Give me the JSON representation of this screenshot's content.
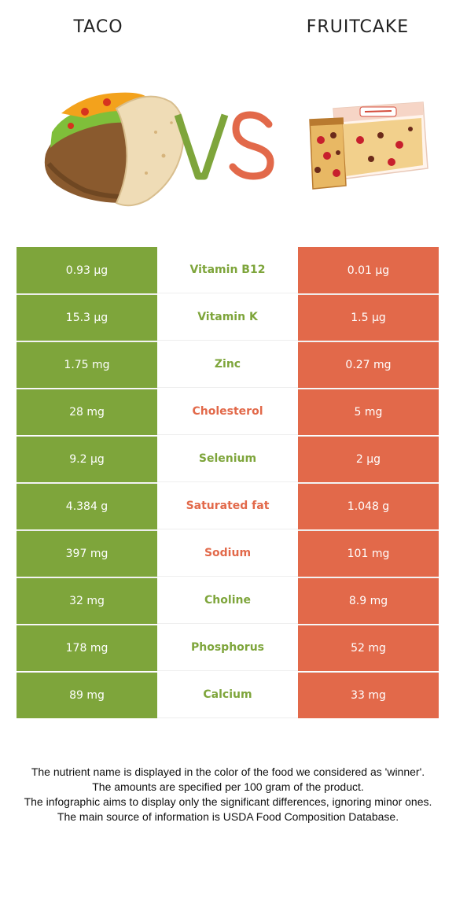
{
  "header": {
    "left_food": "TACO",
    "right_food": "FRUITCAKE"
  },
  "colors": {
    "winner_left": "#7ea53b",
    "winner_right": "#e2694a"
  },
  "icons": {
    "left_food_image": "taco-icon",
    "right_food_image": "fruitcake-icon",
    "vs": "vs-icon"
  },
  "rows": [
    {
      "left": "0.93 µg",
      "nutrient": "Vitamin B12",
      "right": "0.01 µg",
      "winner": "left"
    },
    {
      "left": "15.3 µg",
      "nutrient": "Vitamin K",
      "right": "1.5 µg",
      "winner": "left"
    },
    {
      "left": "1.75 mg",
      "nutrient": "Zinc",
      "right": "0.27 mg",
      "winner": "left"
    },
    {
      "left": "28 mg",
      "nutrient": "Cholesterol",
      "right": "5 mg",
      "winner": "right"
    },
    {
      "left": "9.2 µg",
      "nutrient": "Selenium",
      "right": "2 µg",
      "winner": "left"
    },
    {
      "left": "4.384 g",
      "nutrient": "Saturated fat",
      "right": "1.048 g",
      "winner": "right"
    },
    {
      "left": "397 mg",
      "nutrient": "Sodium",
      "right": "101 mg",
      "winner": "right"
    },
    {
      "left": "32 mg",
      "nutrient": "Choline",
      "right": "8.9 mg",
      "winner": "left"
    },
    {
      "left": "178 mg",
      "nutrient": "Phosphorus",
      "right": "52 mg",
      "winner": "left"
    },
    {
      "left": "89 mg",
      "nutrient": "Calcium",
      "right": "33 mg",
      "winner": "left"
    }
  ],
  "footnote": [
    "The nutrient name is displayed in the color of the food we considered as 'winner'.",
    "The amounts are specified per 100 gram of the product.",
    "The infographic aims to display only the significant differences, ignoring minor ones.",
    "The main source of information is USDA Food Composition Database."
  ]
}
